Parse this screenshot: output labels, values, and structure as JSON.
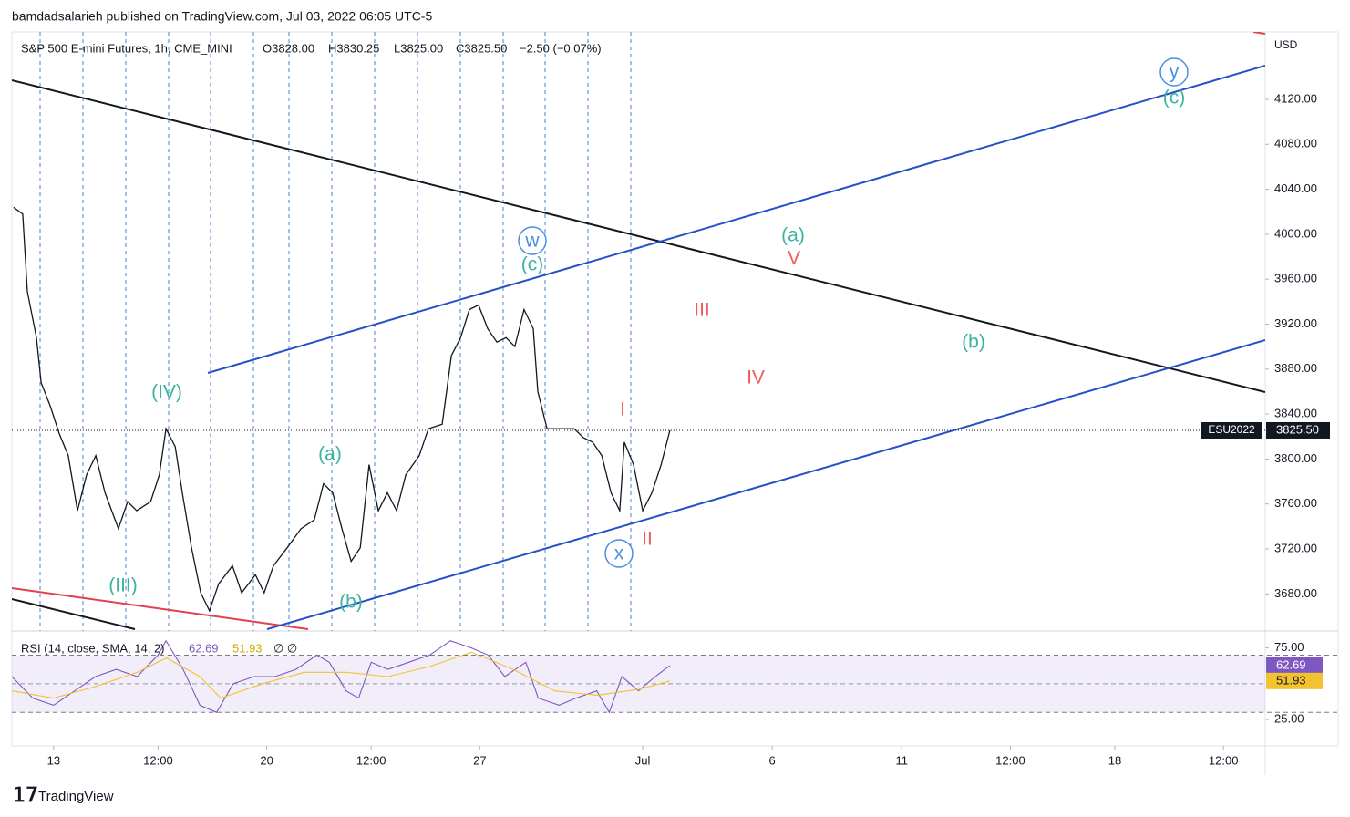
{
  "header": {
    "attribution": "bamdadsalarieh published on TradingView.com, Jul 03, 2022 06:05 UTC-5"
  },
  "legend": {
    "symbol": "S&P 500 E-mini Futures, 1h, CME_MINI",
    "ohlc": [
      "O3828.00",
      "H3830.25",
      "L3825.00",
      "C3825.50",
      "−2.50 (−0.07%)"
    ]
  },
  "currency": "USD",
  "footer": "TradingView",
  "annotations": [
    {
      "text": "(IV)",
      "color": "#3bb3a0",
      "circled": false
    },
    {
      "text": "(III)",
      "color": "#3bb3a0",
      "circled": false
    },
    {
      "text": "(a)",
      "color": "#3bb3a0",
      "circled": false
    },
    {
      "text": "(b)",
      "color": "#3bb3a0",
      "circled": false
    },
    {
      "text": "w",
      "color": "#4a8fe0",
      "circled": true
    },
    {
      "text": "(c)",
      "color": "#3bb3a0",
      "circled": false
    },
    {
      "text": "x",
      "color": "#4a8fe0",
      "circled": true
    },
    {
      "text": "I",
      "color": "#f05a5a",
      "circled": false
    },
    {
      "text": "II",
      "color": "#f05a5a",
      "circled": false
    },
    {
      "text": "III",
      "color": "#f05a5a",
      "circled": false
    },
    {
      "text": "IV",
      "color": "#f05a5a",
      "circled": false
    },
    {
      "text": "V",
      "color": "#f05a5a",
      "circled": false
    },
    {
      "text": "(a)",
      "color": "#3bb3a0",
      "circled": false
    },
    {
      "text": "(b)",
      "color": "#3bb3a0",
      "circled": false
    },
    {
      "text": "y",
      "color": "#4a8fe0",
      "circled": true
    },
    {
      "text": "(c)",
      "color": "#3bb3a0",
      "circled": false
    }
  ],
  "chart_data": [
    {
      "type": "line",
      "x": [
        0.04,
        0.26,
        0.37,
        0.59,
        0.7,
        0.92,
        1.13,
        1.35,
        1.57,
        1.79,
        2.01,
        2.23,
        2.55,
        2.77,
        2.99,
        3.32,
        3.53,
        3.69,
        3.91,
        4.08,
        4.3,
        4.52,
        4.73,
        4.95,
        5.28,
        5.5,
        5.83,
        6.04,
        6.26,
        6.59,
        6.92,
        7.24,
        7.46,
        7.68,
        7.9,
        8.12,
        8.34,
        8.55,
        8.77,
        8.99,
        9.21,
        9.43,
        9.75,
        9.97,
        10.3,
        10.52,
        10.74,
        10.95,
        11.17,
        11.39,
        11.61,
        11.83,
        12.04,
        12.26,
        12.48,
        12.59,
        12.81,
        13.14,
        13.46,
        13.68,
        13.9,
        14.12,
        14.34,
        14.55,
        14.66,
        14.88,
        15.1,
        15.32,
        15.54,
        15.75
      ],
      "series": [
        {
          "name": "ESU2022",
          "color": "#131722",
          "values": [
            4024,
            4018,
            3949,
            3908,
            3868,
            3847,
            3823,
            3803,
            3754,
            3786,
            3803,
            3770,
            3738,
            3762,
            3754,
            3762,
            3786,
            3827,
            3811,
            3770,
            3721,
            3681,
            3665,
            3689,
            3705,
            3681,
            3697,
            3681,
            3705,
            3721,
            3738,
            3746,
            3778,
            3770,
            3738,
            3709,
            3721,
            3795,
            3754,
            3770,
            3754,
            3786,
            3803,
            3827,
            3831,
            3892,
            3908,
            3933,
            3937,
            3916,
            3904,
            3908,
            3900,
            3933,
            3916,
            3860,
            3827,
            3827,
            3827,
            3819,
            3815,
            3803,
            3770,
            3754,
            3815,
            3795,
            3754,
            3770,
            3795,
            3825.5
          ]
        }
      ],
      "last_price": {
        "value": 3825.5,
        "label": "3825.50"
      },
      "xlim": [
        0,
        30
      ],
      "xticks": [
        {
          "value": 1.0,
          "label": "13"
        },
        {
          "value": 3.5,
          "label": "12:00"
        },
        {
          "value": 6.1,
          "label": "20"
        },
        {
          "value": 8.6,
          "label": "12:00"
        },
        {
          "value": 11.2,
          "label": "27"
        },
        {
          "value": 15.1,
          "label": "Jul"
        },
        {
          "value": 18.2,
          "label": "6"
        },
        {
          "value": 21.3,
          "label": "11"
        },
        {
          "value": 23.9,
          "label": "12:00"
        },
        {
          "value": 26.4,
          "label": "18"
        },
        {
          "value": 29.0,
          "label": "12:00"
        }
      ],
      "ylim": [
        3647,
        4180
      ],
      "yticks": [
        {
          "value": 3680,
          "label": "3680.00"
        },
        {
          "value": 3720,
          "label": "3720.00"
        },
        {
          "value": 3760,
          "label": "3760.00"
        },
        {
          "value": 3800,
          "label": "3800.00"
        },
        {
          "value": 3840,
          "label": "3840.00"
        },
        {
          "value": 3880,
          "label": "3880.00"
        },
        {
          "value": 3920,
          "label": "3920.00"
        },
        {
          "value": 3960,
          "label": "3960.00"
        },
        {
          "value": 4000,
          "label": "4000.00"
        },
        {
          "value": 4040,
          "label": "4040.00"
        },
        {
          "value": 4080,
          "label": "4080.00"
        },
        {
          "value": 4120,
          "label": "4120.00"
        }
      ]
    },
    {
      "type": "line",
      "title": "RSI (14, close, SMA, 14, 2)",
      "extra": "∅ ∅",
      "series": [
        {
          "color": "#7e57c2",
          "x": [
            0.0,
            0.5,
            1.0,
            1.5,
            2.0,
            2.5,
            3.0,
            3.5,
            3.69,
            4.1,
            4.5,
            4.9,
            5.3,
            5.8,
            6.3,
            6.8,
            7.3,
            7.6,
            8.0,
            8.3,
            8.6,
            9.0,
            9.5,
            10.0,
            10.5,
            11.0,
            11.4,
            11.8,
            12.3,
            12.6,
            13.1,
            13.5,
            14.0,
            14.3,
            14.6,
            15.0,
            15.4,
            15.75
          ],
          "values": [
            55,
            40,
            35,
            45,
            55,
            60,
            55,
            70,
            80,
            60,
            35,
            30,
            50,
            55,
            55,
            60,
            70,
            65,
            45,
            40,
            65,
            60,
            65,
            70,
            80,
            75,
            70,
            55,
            65,
            40,
            35,
            40,
            45,
            30,
            55,
            45,
            55,
            62.69
          ]
        },
        {
          "color": "#f2c230",
          "x": [
            0,
            1,
            2,
            3,
            3.7,
            4.5,
            5,
            6,
            7,
            8,
            9,
            10,
            11,
            12,
            13,
            14,
            15,
            15.75
          ],
          "values": [
            45,
            40,
            48,
            58,
            68,
            55,
            40,
            50,
            58,
            58,
            55,
            62,
            72,
            60,
            45,
            42,
            46,
            51.93
          ]
        }
      ],
      "xlim": [
        0,
        30
      ],
      "ylim": [
        6.6,
        86.2
      ],
      "yticks": [
        {
          "value": 75,
          "label": "75.00"
        },
        {
          "value": 25,
          "label": "25.00"
        }
      ],
      "band": [
        30,
        70
      ],
      "midline": 50
    }
  ]
}
